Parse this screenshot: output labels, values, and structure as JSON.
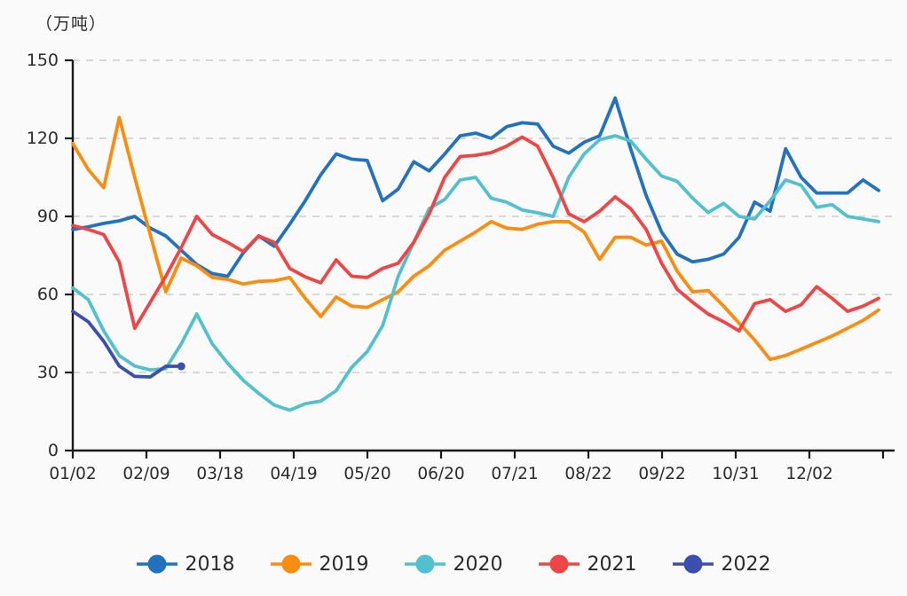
{
  "title": {
    "unit": "（万吨）"
  },
  "chart_data": {
    "type": "line",
    "title": "（万吨）",
    "ylabel": "万吨",
    "ylim": [
      0,
      150
    ],
    "y_ticks": [
      0,
      30,
      60,
      90,
      120,
      150
    ],
    "x_tick_labels": [
      "01/02",
      "02/09",
      "03/18",
      "04/19",
      "05/20",
      "06/20",
      "07/21",
      "08/22",
      "09/22",
      "10/31",
      "12/02"
    ],
    "grid": "horizontal-dashed",
    "legend_position": "bottom",
    "series": [
      {
        "name": "2018",
        "color": "#2372c0",
        "values": [
          85,
          86,
          87.3,
          88.3,
          90,
          85.5,
          82.5,
          77,
          71.5,
          68,
          67,
          76,
          82.5,
          78.5,
          87,
          96,
          106,
          114,
          112,
          111.5,
          96,
          100.5,
          111,
          107.5,
          114,
          121,
          122,
          120,
          124.5,
          126,
          125.5,
          117,
          114.3,
          118.5,
          121,
          135.5,
          116,
          98,
          84,
          75.5,
          72.5,
          73.5,
          75.5,
          82,
          95.5,
          92,
          116,
          105,
          99,
          99,
          99,
          104,
          100
        ]
      },
      {
        "name": "2019",
        "color": "#f98d10",
        "values": [
          118,
          108,
          101,
          128,
          105,
          83,
          61,
          74,
          71,
          66.5,
          65.8,
          64,
          65,
          65.3,
          66.5,
          58.5,
          51.5,
          59,
          55.5,
          55,
          58,
          61,
          67,
          71,
          77,
          80.5,
          84,
          88,
          85.5,
          85,
          87,
          88,
          88,
          84,
          73.5,
          82,
          82,
          79,
          80.5,
          69,
          61,
          61.5,
          55.5,
          49,
          42.5,
          35,
          36.5,
          39,
          41.5,
          44,
          47,
          50,
          54
        ]
      },
      {
        "name": "2020",
        "color": "#52c1cf",
        "values": [
          62.5,
          58,
          46,
          36.5,
          32.5,
          31,
          31.5,
          41,
          52.5,
          41,
          33.5,
          27,
          22,
          17.5,
          15.5,
          18,
          19,
          23,
          32,
          38,
          48,
          67,
          80,
          93,
          96.5,
          104,
          105,
          97,
          95.5,
          92.5,
          91.4,
          90,
          105,
          114,
          119.5,
          121,
          119,
          112,
          105.5,
          103.5,
          97,
          91.5,
          95,
          90,
          89,
          96,
          104,
          102,
          93.5,
          94.5,
          90,
          89,
          88
        ]
      },
      {
        "name": "2021",
        "color": "#ee4545",
        "values": [
          86.5,
          85,
          83,
          72.5,
          47,
          57,
          67,
          78,
          90,
          83,
          80,
          76.5,
          82.5,
          80,
          70,
          66.8,
          64.5,
          73.3,
          67,
          66.5,
          70,
          72,
          80,
          91,
          105,
          113,
          113.5,
          114.5,
          117,
          120.5,
          117,
          105,
          91,
          88,
          92,
          97.5,
          93,
          85,
          72,
          62,
          57,
          52.5,
          49.5,
          46,
          56.5,
          58,
          53.5,
          56,
          63,
          58.5,
          53.5,
          55.5,
          58.5
        ]
      },
      {
        "name": "2022",
        "color": "#3c4fae",
        "end_dot": true,
        "values": [
          53.5,
          49.5,
          42,
          32.5,
          28.5,
          28.3,
          32.4,
          32.4
        ]
      }
    ]
  }
}
